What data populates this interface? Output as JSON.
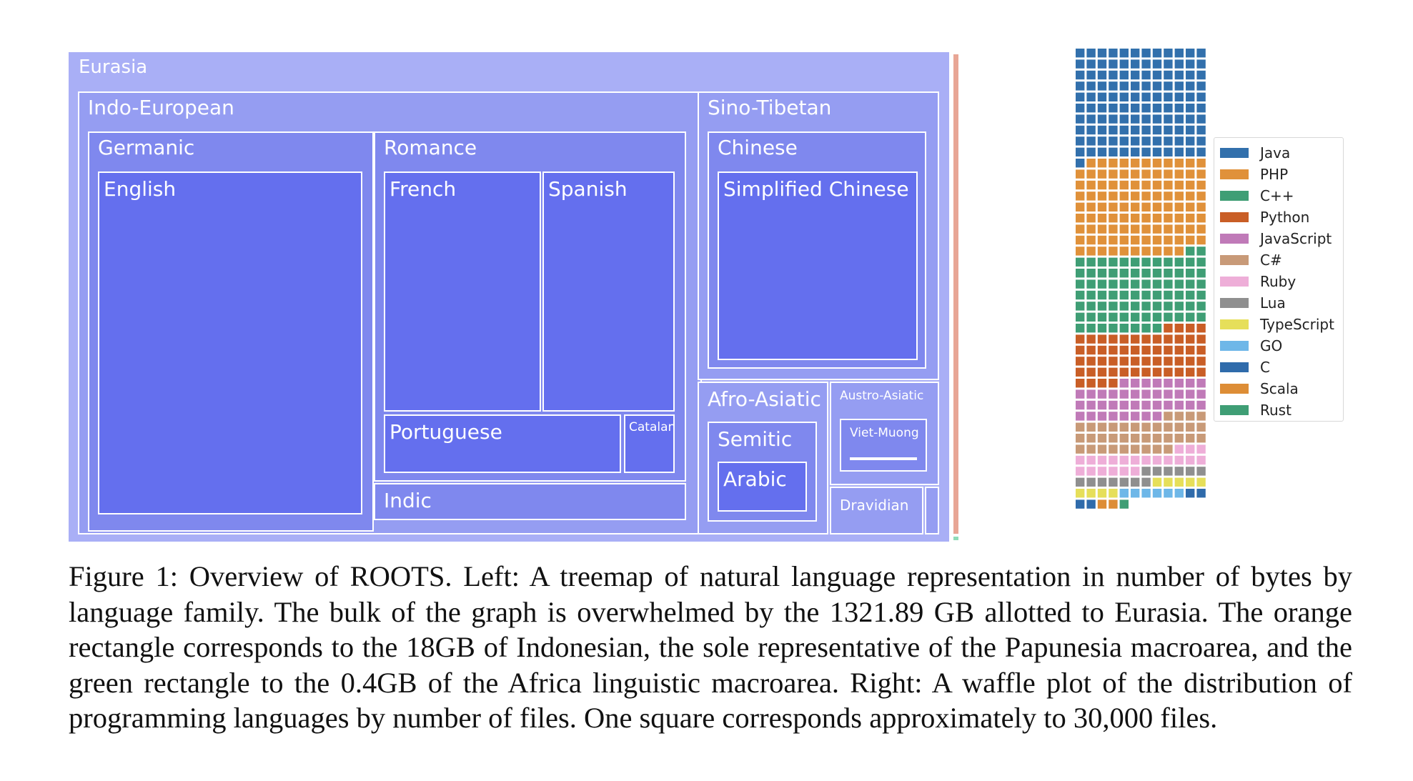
{
  "treemap": {
    "eurasia": "Eurasia",
    "indo_european": "Indo-European",
    "germanic": "Germanic",
    "english": "English",
    "romance": "Romance",
    "french": "French",
    "spanish": "Spanish",
    "portuguese": "Portuguese",
    "catalan": "Catalan",
    "indic": "Indic",
    "sino_tibetan": "Sino-Tibetan",
    "chinese": "Chinese",
    "simplified_chinese": "Simplified Chinese",
    "afro_asiatic": "Afro-Asiatic",
    "semitic": "Semitic",
    "arabic": "Arabic",
    "austro_asiatic": "Austro-Asiatic",
    "viet_muong": "Viet-Muong",
    "dravidian": "Dravidian",
    "colors": {
      "level1": "#a9aff6",
      "level2": "#959df2",
      "level3": "#7f88ee",
      "leaf": "#646fee",
      "papunesia": "#e8a695",
      "africa": "#8fdcb8"
    }
  },
  "waffle": {
    "columns": 12,
    "rows": 45,
    "legend": [
      {
        "name": "Java",
        "color": "#3270ac",
        "squares": 121
      },
      {
        "name": "PHP",
        "color": "#e0913a",
        "squares": 105
      },
      {
        "name": "C++",
        "color": "#3f9e75",
        "squares": 82
      },
      {
        "name": "Python",
        "color": "#c95e26",
        "squares": 56
      },
      {
        "name": "JavaScript",
        "color": "#c07ab8",
        "squares": 40
      },
      {
        "name": "C#",
        "color": "#c89a78",
        "squares": 37
      },
      {
        "name": "Ruby",
        "color": "#eeaed8",
        "squares": 21
      },
      {
        "name": "Lua",
        "color": "#8f8f8f",
        "squares": 13
      },
      {
        "name": "TypeScript",
        "color": "#e6df5a",
        "squares": 9
      },
      {
        "name": "GO",
        "color": "#6eb7e8",
        "squares": 6
      },
      {
        "name": "C",
        "color": "#2f6bab",
        "squares": 4
      },
      {
        "name": "Scala",
        "color": "#dd8d36",
        "squares": 2
      },
      {
        "name": "Rust",
        "color": "#3f9e75",
        "squares": 1
      }
    ]
  },
  "caption": {
    "text": "Figure 1: Overview of ROOTS. Left: A treemap of natural language representation in number of bytes by language family. The bulk of the graph is overwhelmed by the 1321.89 GB allotted to Eurasia. The orange rectangle corresponds to the 18GB of Indonesian, the sole representative of the Papunesia macroarea, and the green rectangle to the 0.4GB of the Africa linguistic macroarea. Right: A waffle plot of the distribution of programming languages by number of files. One square corresponds approximately to 30,000 files."
  }
}
